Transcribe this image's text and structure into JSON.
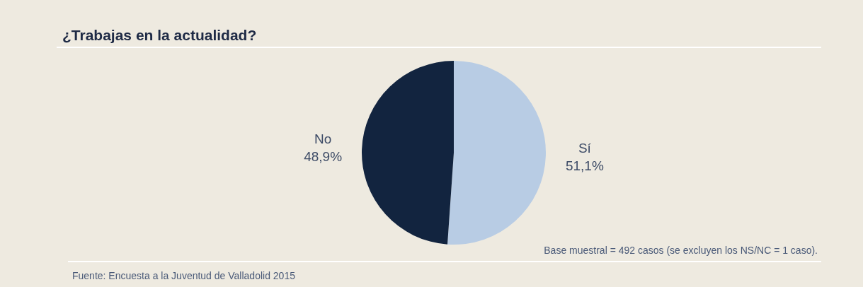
{
  "chart_data": {
    "type": "pie",
    "title": "¿Trabajas en la actualidad?",
    "categories": [
      "Sí",
      "No"
    ],
    "values": [
      51.1,
      48.9
    ],
    "colors": [
      "#b8cce4",
      "#12243f"
    ],
    "value_labels": [
      "51,1%",
      "48,9%"
    ],
    "annotations": [
      "Base muestral = 492 casos (se excluyen los NS/NC = 1 caso).",
      "Fuente: Encuesta a la Juventud de Valladolid 2015"
    ],
    "legend": false
  }
}
